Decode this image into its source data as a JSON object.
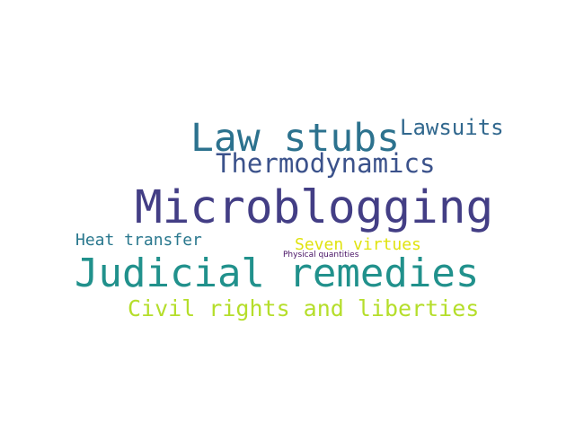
{
  "words": [
    {
      "text": "Microblogging",
      "color": "#433e85"
    },
    {
      "text": "Judicial remedies",
      "color": "#21918c"
    },
    {
      "text": "Law stubs",
      "color": "#2c728e"
    },
    {
      "text": "Thermodynamics",
      "color": "#3b528b"
    },
    {
      "text": "Lawsuits",
      "color": "#31688e"
    },
    {
      "text": "Civil rights and liberties",
      "color": "#b5de2b"
    },
    {
      "text": "Heat transfer",
      "color": "#2a788e"
    },
    {
      "text": "Seven virtues",
      "color": "#e0e30f"
    },
    {
      "text": "Physical quantities",
      "color": "#471164"
    }
  ]
}
